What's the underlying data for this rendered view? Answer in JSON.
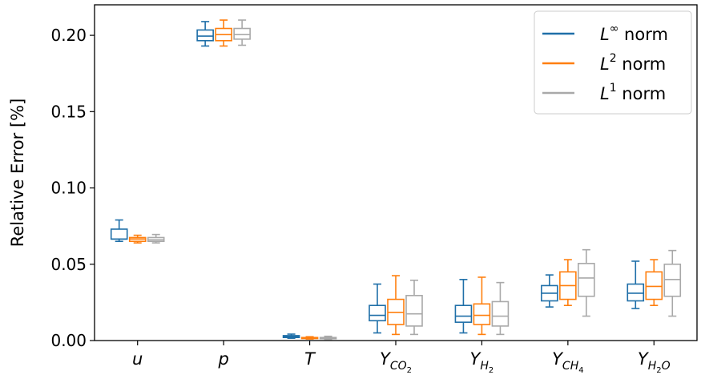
{
  "chart_data": {
    "type": "boxplot",
    "title": "",
    "xlabel": "",
    "ylabel": "Relative Error [%]",
    "ylim": [
      0.0,
      0.22
    ],
    "yticks": [
      0.0,
      0.05,
      0.1,
      0.15,
      0.2
    ],
    "ytick_labels": [
      "0.00",
      "0.05",
      "0.10",
      "0.15",
      "0.20"
    ],
    "grid": false,
    "legend_position": "top-right",
    "categories": [
      {
        "base": "u",
        "sub": ""
      },
      {
        "base": "p",
        "sub": ""
      },
      {
        "base": "T",
        "sub": ""
      },
      {
        "base": "Y",
        "sub": "CO",
        "subsub": "2"
      },
      {
        "base": "Y",
        "sub": "H",
        "subsub": "2"
      },
      {
        "base": "Y",
        "sub": "CH",
        "subsub": "4"
      },
      {
        "base": "Y",
        "sub": "H",
        "subsub": "2",
        "tail": "O"
      }
    ],
    "series": [
      {
        "name": "L^∞ norm",
        "base": "L",
        "sup": "∞",
        "suffix": " norm",
        "color": "#1f6fa8",
        "boxes": [
          {
            "whislo": 0.065,
            "q1": 0.0665,
            "med": 0.0665,
            "q3": 0.073,
            "whishi": 0.079
          },
          {
            "whislo": 0.193,
            "q1": 0.1965,
            "med": 0.1995,
            "q3": 0.2035,
            "whishi": 0.209
          },
          {
            "whislo": 0.0015,
            "q1": 0.002,
            "med": 0.0026,
            "q3": 0.0032,
            "whishi": 0.0042
          },
          {
            "whislo": 0.005,
            "q1": 0.013,
            "med": 0.0165,
            "q3": 0.023,
            "whishi": 0.037
          },
          {
            "whislo": 0.005,
            "q1": 0.012,
            "med": 0.016,
            "q3": 0.023,
            "whishi": 0.04
          },
          {
            "whislo": 0.022,
            "q1": 0.026,
            "med": 0.031,
            "q3": 0.036,
            "whishi": 0.043
          },
          {
            "whislo": 0.021,
            "q1": 0.026,
            "med": 0.031,
            "q3": 0.037,
            "whishi": 0.052
          }
        ]
      },
      {
        "name": "L^2 norm",
        "base": "L",
        "sup": "2",
        "suffix": " norm",
        "color": "#ff7f0e",
        "boxes": [
          {
            "whislo": 0.064,
            "q1": 0.065,
            "med": 0.0665,
            "q3": 0.0675,
            "whishi": 0.069
          },
          {
            "whislo": 0.193,
            "q1": 0.1965,
            "med": 0.2005,
            "q3": 0.2045,
            "whishi": 0.21
          },
          {
            "whislo": 0.001,
            "q1": 0.0013,
            "med": 0.0016,
            "q3": 0.002,
            "whishi": 0.0025
          },
          {
            "whislo": 0.004,
            "q1": 0.0105,
            "med": 0.0185,
            "q3": 0.027,
            "whishi": 0.0425
          },
          {
            "whislo": 0.004,
            "q1": 0.0105,
            "med": 0.0165,
            "q3": 0.024,
            "whishi": 0.0415
          },
          {
            "whislo": 0.023,
            "q1": 0.027,
            "med": 0.036,
            "q3": 0.045,
            "whishi": 0.053
          },
          {
            "whislo": 0.023,
            "q1": 0.027,
            "med": 0.0355,
            "q3": 0.045,
            "whishi": 0.053
          }
        ]
      },
      {
        "name": "L^1 norm",
        "base": "L",
        "sup": "1",
        "suffix": " norm",
        "color": "#a9a9a9",
        "boxes": [
          {
            "whislo": 0.064,
            "q1": 0.065,
            "med": 0.066,
            "q3": 0.0675,
            "whishi": 0.0695
          },
          {
            "whislo": 0.1935,
            "q1": 0.1975,
            "med": 0.2005,
            "q3": 0.2045,
            "whishi": 0.21
          },
          {
            "whislo": 0.0008,
            "q1": 0.0012,
            "med": 0.0016,
            "q3": 0.002,
            "whishi": 0.0028
          },
          {
            "whislo": 0.004,
            "q1": 0.0095,
            "med": 0.0175,
            "q3": 0.0295,
            "whishi": 0.0395
          },
          {
            "whislo": 0.004,
            "q1": 0.0095,
            "med": 0.016,
            "q3": 0.0255,
            "whishi": 0.038
          },
          {
            "whislo": 0.016,
            "q1": 0.029,
            "med": 0.041,
            "q3": 0.0505,
            "whishi": 0.0595
          },
          {
            "whislo": 0.016,
            "q1": 0.029,
            "med": 0.04,
            "q3": 0.05,
            "whishi": 0.059
          }
        ]
      }
    ]
  }
}
